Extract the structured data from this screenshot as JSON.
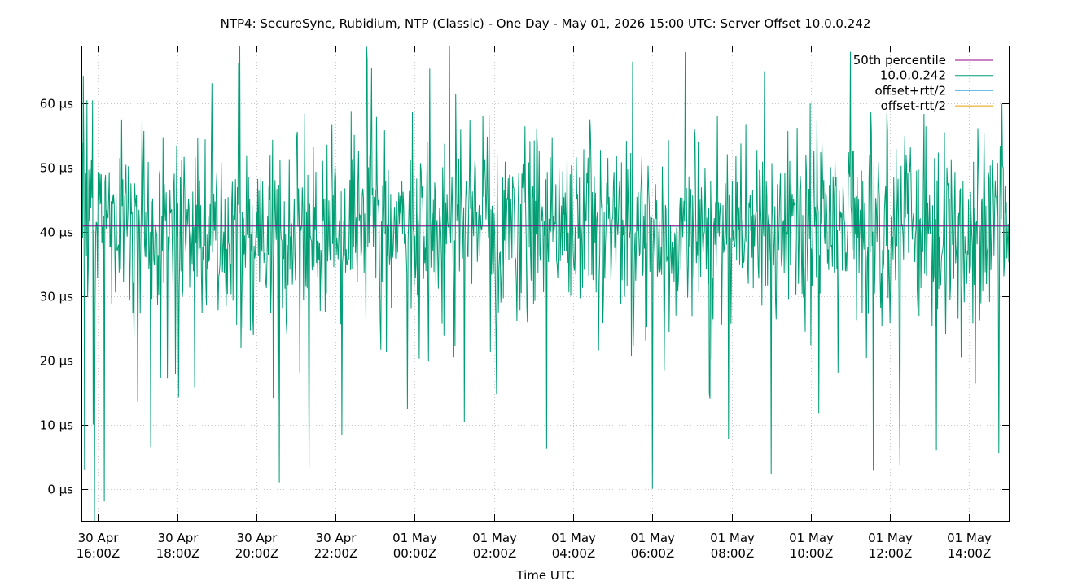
{
  "chart_data": {
    "type": "line",
    "title": "NTP4: SecureSync, Rubidium, NTP (Classic) - One Day - May 01, 2026 15:00 UTC: Server Offset 10.0.0.242",
    "xlabel": "Time UTC",
    "ylabel": "",
    "x_range": [
      "2026-04-30T15:35Z",
      "2026-05-01T15:00Z"
    ],
    "ylim": [
      -5,
      69
    ],
    "y_ticks": [
      {
        "value": 0,
        "label": "0 µs"
      },
      {
        "value": 10,
        "label": "10 µs"
      },
      {
        "value": 20,
        "label": "20 µs"
      },
      {
        "value": 30,
        "label": "30 µs"
      },
      {
        "value": 40,
        "label": "40 µs"
      },
      {
        "value": 50,
        "label": "50 µs"
      },
      {
        "value": 60,
        "label": "60 µs"
      }
    ],
    "x_ticks": [
      {
        "time": "2026-04-30T16:00Z",
        "line1": "30 Apr",
        "line2": "16:00Z"
      },
      {
        "time": "2026-04-30T18:00Z",
        "line1": "30 Apr",
        "line2": "18:00Z"
      },
      {
        "time": "2026-04-30T20:00Z",
        "line1": "30 Apr",
        "line2": "20:00Z"
      },
      {
        "time": "2026-04-30T22:00Z",
        "line1": "30 Apr",
        "line2": "22:00Z"
      },
      {
        "time": "2026-05-01T00:00Z",
        "line1": "01 May",
        "line2": "00:00Z"
      },
      {
        "time": "2026-05-01T02:00Z",
        "line1": "01 May",
        "line2": "02:00Z"
      },
      {
        "time": "2026-05-01T04:00Z",
        "line1": "01 May",
        "line2": "04:00Z"
      },
      {
        "time": "2026-05-01T06:00Z",
        "line1": "01 May",
        "line2": "06:00Z"
      },
      {
        "time": "2026-05-01T08:00Z",
        "line1": "01 May",
        "line2": "08:00Z"
      },
      {
        "time": "2026-05-01T10:00Z",
        "line1": "01 May",
        "line2": "10:00Z"
      },
      {
        "time": "2026-05-01T12:00Z",
        "line1": "01 May",
        "line2": "12:00Z"
      },
      {
        "time": "2026-05-01T14:00Z",
        "line1": "01 May",
        "line2": "14:00Z"
      }
    ],
    "grid": true,
    "legend_position": "top-right",
    "series": [
      {
        "name": "50th percentile",
        "color": "#94008b",
        "style": "constant",
        "value": 40.9
      },
      {
        "name": "10.0.0.242",
        "color": "#009e73",
        "style": "noisy",
        "center": 41,
        "typical_spread": 7,
        "minimum": -5,
        "maximum": 69,
        "spikes": [
          {
            "time": "2026-04-30T15:40Z",
            "value": 3
          },
          {
            "time": "2026-04-30T15:43Z",
            "value": 60.5
          },
          {
            "time": "2026-04-30T15:55Z",
            "value": -5
          },
          {
            "time": "2026-04-30T15:53Z",
            "value": 10
          },
          {
            "time": "2026-04-30T16:10Z",
            "value": -2
          },
          {
            "time": "2026-04-30T17:20Z",
            "value": 6.5
          },
          {
            "time": "2026-04-30T19:35Z",
            "value": 69
          },
          {
            "time": "2026-04-30T20:35Z",
            "value": 1
          },
          {
            "time": "2026-04-30T21:20Z",
            "value": 3.3
          },
          {
            "time": "2026-04-30T22:10Z",
            "value": 8.4
          },
          {
            "time": "2026-05-01T01:15Z",
            "value": 10.4
          },
          {
            "time": "2026-05-01T03:20Z",
            "value": 6.2
          },
          {
            "time": "2026-05-01T05:30Z",
            "value": 66.5
          },
          {
            "time": "2026-05-01T06:00Z",
            "value": 0
          },
          {
            "time": "2026-05-01T06:50Z",
            "value": 68
          },
          {
            "time": "2026-05-01T07:55Z",
            "value": 7.7
          },
          {
            "time": "2026-05-01T08:50Z",
            "value": 65
          },
          {
            "time": "2026-05-01T09:00Z",
            "value": 2.3
          },
          {
            "time": "2026-05-01T11:35Z",
            "value": 2.8
          },
          {
            "time": "2026-05-01T12:15Z",
            "value": 3.7
          },
          {
            "time": "2026-05-01T13:10Z",
            "value": 6
          },
          {
            "time": "2026-05-01T14:45Z",
            "value": 5.5
          }
        ]
      },
      {
        "name": "offset+rtt/2",
        "color": "#56b4e9",
        "style": "hidden"
      },
      {
        "name": "offset-rtt/2",
        "color": "#e69f00",
        "style": "hidden"
      }
    ]
  }
}
